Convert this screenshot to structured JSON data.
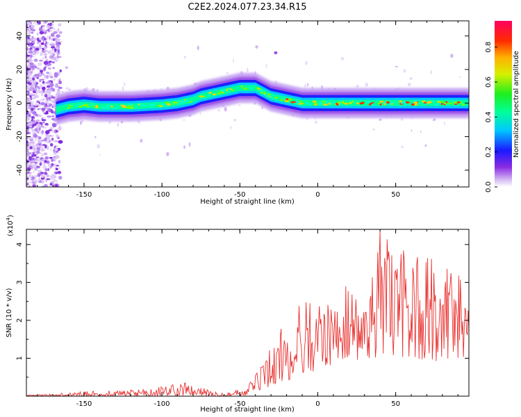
{
  "title": "C2E2.2024.077.23.34.R15",
  "chart_data": [
    {
      "type": "heatmap",
      "xlabel": "Height of straight line (km)",
      "ylabel": "Frequency (Hz)",
      "xlim": [
        -187,
        97
      ],
      "ylim": [
        -50,
        49
      ],
      "xticks": [
        "-150",
        "-100",
        "-50",
        "0",
        "50"
      ],
      "yticks": [
        "40",
        "20",
        "0",
        "-20",
        "-40"
      ],
      "colorbar": {
        "label": "Normalized spectral amplitude",
        "range": [
          0,
          0.95
        ],
        "ticks": [
          "0.0",
          "0.2",
          "0.4",
          "0.6",
          "0.8"
        ]
      },
      "ridge": {
        "x": [
          -185,
          -175,
          -168,
          -160,
          -150,
          -140,
          -120,
          -100,
          -90,
          -80,
          -75,
          -70,
          -60,
          -50,
          -45,
          -40,
          -36,
          -30,
          -20,
          -10,
          0,
          10,
          20,
          30,
          40,
          50,
          60,
          70,
          80,
          90,
          97
        ],
        "frequency": [
          -2,
          -3,
          -4,
          -2,
          -1,
          -2,
          -2,
          -1,
          0,
          2,
          4,
          5,
          7,
          9,
          9,
          9,
          7,
          4,
          2,
          0,
          0,
          0,
          0,
          0,
          0,
          0,
          0,
          0,
          0,
          0,
          0
        ]
      }
    },
    {
      "type": "line",
      "xlabel": "Height of straight line (km)",
      "ylabel": "SNR (10 * v/v)",
      "y_scale_label": "(x10",
      "y_scale_exp": "4",
      "y_scale_close": ")",
      "xlim": [
        -187,
        97
      ],
      "ylim": [
        0,
        4.4
      ],
      "xticks": [
        "-150",
        "-100",
        "-50",
        "0",
        "50"
      ],
      "yticks": [
        "4",
        "3",
        "2",
        "1"
      ],
      "series": [
        {
          "color": "#e8302e",
          "envelope": {
            "x": [
              -187,
              -170,
              -150,
              -130,
              -110,
              -95,
              -85,
              -75,
              -60,
              -55,
              -45,
              -40,
              -35,
              -30,
              -25,
              -20,
              -15,
              -10,
              -5,
              0,
              5,
              10,
              15,
              20,
              25,
              30,
              35,
              40,
              45,
              50,
              55,
              60,
              65,
              70,
              75,
              80,
              85,
              90,
              95,
              97
            ],
            "low": [
              0,
              0,
              0,
              0,
              0,
              0.02,
              0,
              0,
              0,
              0,
              0.02,
              0.05,
              0.1,
              0.2,
              0.3,
              0.4,
              0.5,
              0.5,
              0.6,
              0.7,
              0.8,
              0.8,
              0.9,
              0.9,
              0.9,
              1.0,
              0.9,
              0.9,
              1.0,
              0.9,
              1.0,
              1.0,
              0.9,
              1.0,
              0.9,
              1.0,
              0.9,
              1.0,
              0.9,
              1.0
            ],
            "high": [
              0.03,
              0.06,
              0.12,
              0.15,
              0.18,
              0.3,
              0.35,
              0.22,
              0.12,
              0.12,
              0.3,
              0.55,
              0.85,
              1.35,
              1.7,
              1.95,
              2.2,
              2.5,
              2.45,
              2.5,
              2.45,
              2.7,
              2.75,
              3.0,
              3.2,
              3.3,
              3.5,
              4.4,
              4.3,
              4.1,
              3.9,
              3.8,
              3.7,
              4.0,
              3.5,
              3.3,
              3.4,
              3.3,
              3.1,
              3.2
            ]
          }
        }
      ]
    }
  ]
}
